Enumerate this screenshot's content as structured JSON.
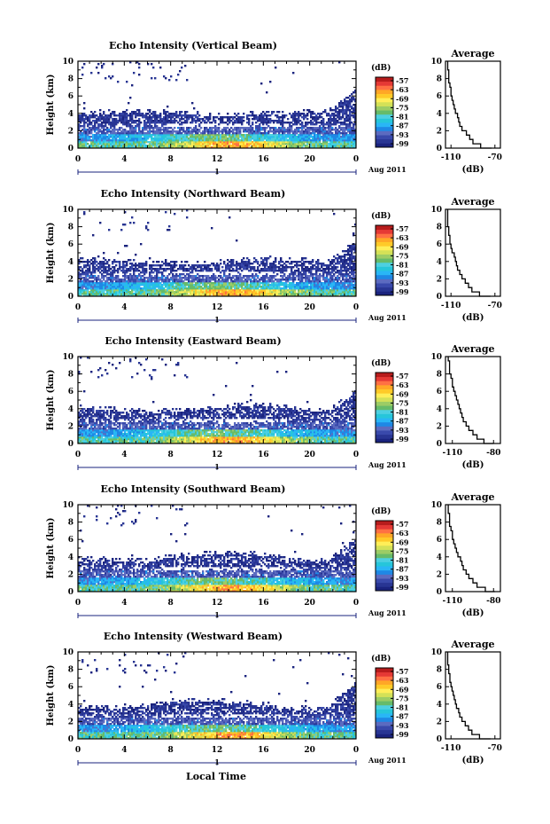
{
  "figure": {
    "x_axis_label": "Local Time",
    "date_label": "Aug 2011",
    "day_marker": "1",
    "colorbar_unit": "(dB)",
    "colorbar_ticks": [
      "-57",
      "-63",
      "-69",
      "-75",
      "-81",
      "-87",
      "-93",
      "-99"
    ],
    "colormap": [
      "#1a237e",
      "#283593",
      "#3949ab",
      "#5c6bc0",
      "#1e88e5",
      "#29b6f6",
      "#26c6da",
      "#4dd0e1",
      "#66bb6a",
      "#9ccc65",
      "#d4e157",
      "#ffee58",
      "#ffca28",
      "#ffa726",
      "#ff7043",
      "#e53935",
      "#b71c1c"
    ],
    "avg_title": "Average",
    "avg_xlabel": "(dB)"
  },
  "chart_data": [
    {
      "type": "heatmap",
      "title": "Echo Intensity (Vertical Beam)",
      "xlabel": "Local Time",
      "ylabel": "Height (km)",
      "xlim": [
        0,
        24
      ],
      "ylim": [
        0,
        10
      ],
      "xticks": [
        "0",
        "4",
        "8",
        "12",
        "16",
        "20",
        "0"
      ],
      "yticks": [
        "0",
        "2",
        "4",
        "6",
        "8",
        "10"
      ],
      "color_range_db": [
        -99,
        -57
      ],
      "average_profile": {
        "xticks": [
          "-110",
          "-70"
        ],
        "xlim": [
          -115,
          -65
        ],
        "height_km": [
          0,
          0.5,
          1,
          1.5,
          2,
          2.5,
          3,
          3.5,
          4,
          4.5,
          5,
          5.5,
          6,
          6.5,
          7,
          7.5,
          8,
          8.5,
          9,
          9.5,
          10
        ],
        "avg_db": [
          -73,
          -83,
          -90,
          -93,
          -96,
          -100,
          -102,
          -103,
          -104,
          -106,
          -107,
          -108,
          -109,
          -110,
          -110,
          -111,
          -112,
          -112,
          -112,
          -113,
          -113
        ]
      }
    },
    {
      "type": "heatmap",
      "title": "Echo Intensity (Northward Beam)",
      "xlabel": "Local Time",
      "ylabel": "Height (km)",
      "xlim": [
        0,
        24
      ],
      "ylim": [
        0,
        10
      ],
      "xticks": [
        "0",
        "4",
        "8",
        "12",
        "16",
        "20",
        "0"
      ],
      "yticks": [
        "0",
        "2",
        "4",
        "6",
        "8",
        "10"
      ],
      "color_range_db": [
        -99,
        -57
      ],
      "average_profile": {
        "xticks": [
          "-110",
          "-70"
        ],
        "xlim": [
          -115,
          -65
        ],
        "height_km": [
          0,
          0.5,
          1,
          1.5,
          2,
          2.5,
          3,
          3.5,
          4,
          4.5,
          5,
          5.5,
          6,
          6.5,
          7,
          7.5,
          8,
          8.5,
          9,
          9.5,
          10
        ],
        "avg_db": [
          -74,
          -84,
          -91,
          -94,
          -97,
          -100,
          -102,
          -104,
          -105,
          -106,
          -107,
          -109,
          -110,
          -111,
          -111,
          -112,
          -112,
          -113,
          -113,
          -113,
          -113
        ]
      }
    },
    {
      "type": "heatmap",
      "title": "Echo Intensity (Eastward Beam)",
      "xlabel": "Local Time",
      "ylabel": "Height (km)",
      "xlim": [
        0,
        24
      ],
      "ylim": [
        0,
        10
      ],
      "xticks": [
        "0",
        "4",
        "8",
        "12",
        "16",
        "20",
        "0"
      ],
      "yticks": [
        "0",
        "2",
        "4",
        "6",
        "8",
        "10"
      ],
      "color_range_db": [
        -99,
        -57
      ],
      "average_profile": {
        "xticks": [
          "-110",
          "-80"
        ],
        "xlim": [
          -115,
          -75
        ],
        "height_km": [
          0,
          0.5,
          1,
          1.5,
          2,
          2.5,
          3,
          3.5,
          4,
          4.5,
          5,
          5.5,
          6,
          6.5,
          7,
          7.5,
          8,
          8.5,
          9,
          9.5,
          10
        ],
        "avg_db": [
          -80,
          -87,
          -92,
          -95,
          -98,
          -100,
          -102,
          -103,
          -104,
          -105,
          -106,
          -107,
          -108,
          -109,
          -110,
          -110,
          -111,
          -112,
          -112,
          -112,
          -113
        ]
      }
    },
    {
      "type": "heatmap",
      "title": "Echo Intensity (Southward Beam)",
      "xlabel": "Local Time",
      "ylabel": "Height (km)",
      "xlim": [
        0,
        24
      ],
      "ylim": [
        0,
        10
      ],
      "xticks": [
        "0",
        "4",
        "8",
        "12",
        "16",
        "20",
        "0"
      ],
      "yticks": [
        "0",
        "2",
        "4",
        "6",
        "8",
        "10"
      ],
      "color_range_db": [
        -99,
        -57
      ],
      "average_profile": {
        "xticks": [
          "-110",
          "-80"
        ],
        "xlim": [
          -115,
          -75
        ],
        "height_km": [
          0,
          0.5,
          1,
          1.5,
          2,
          2.5,
          3,
          3.5,
          4,
          4.5,
          5,
          5.5,
          6,
          6.5,
          7,
          7.5,
          8,
          8.5,
          9,
          9.5,
          10
        ],
        "avg_db": [
          -79,
          -86,
          -92,
          -95,
          -98,
          -100,
          -102,
          -103,
          -104,
          -106,
          -107,
          -108,
          -109,
          -110,
          -110,
          -111,
          -112,
          -112,
          -112,
          -113,
          -113
        ]
      }
    },
    {
      "type": "heatmap",
      "title": "Echo Intensity (Westward Beam)",
      "xlabel": "Local Time",
      "ylabel": "Height (km)",
      "xlim": [
        0,
        24
      ],
      "ylim": [
        0,
        10
      ],
      "xticks": [
        "0",
        "4",
        "8",
        "12",
        "16",
        "20",
        "0"
      ],
      "yticks": [
        "0",
        "2",
        "4",
        "6",
        "8",
        "10"
      ],
      "color_range_db": [
        -99,
        -57
      ],
      "average_profile": {
        "xticks": [
          "-110",
          "-70"
        ],
        "xlim": [
          -115,
          -65
        ],
        "height_km": [
          0,
          0.5,
          1,
          1.5,
          2,
          2.5,
          3,
          3.5,
          4,
          4.5,
          5,
          5.5,
          6,
          6.5,
          7,
          7.5,
          8,
          8.5,
          9,
          9.5,
          10
        ],
        "avg_db": [
          -74,
          -84,
          -91,
          -94,
          -97,
          -100,
          -102,
          -103,
          -105,
          -106,
          -107,
          -108,
          -109,
          -110,
          -111,
          -111,
          -112,
          -112,
          -113,
          -113,
          -113
        ]
      }
    }
  ]
}
